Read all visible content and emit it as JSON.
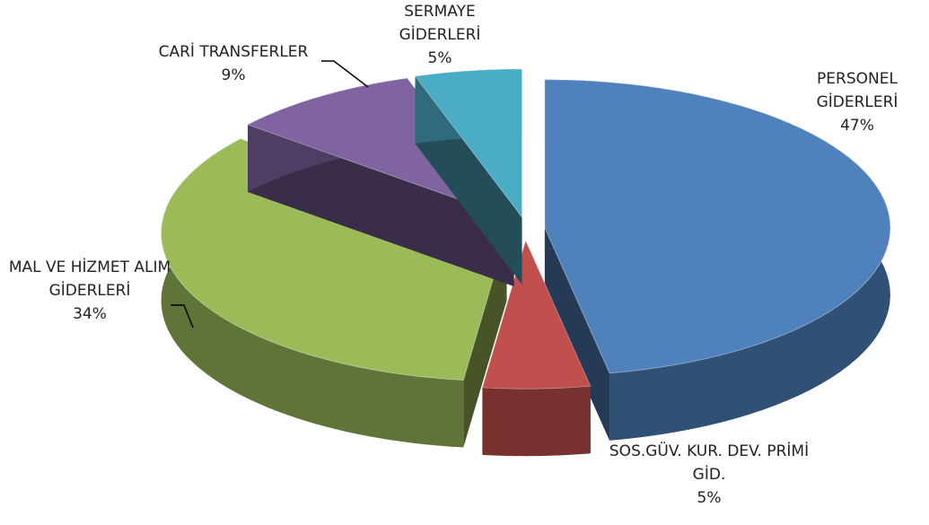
{
  "chart_data": {
    "type": "pie",
    "categories": [
      "PERSONEL GİDERLERİ",
      "SOS.GÜV. KUR. DEV. PRİMİ GİD.",
      "MAL VE HİZMET ALIM GİDERLERİ",
      "CARİ TRANSFERLER",
      "SERMAYE GİDERLERİ"
    ],
    "values": [
      47,
      5,
      34,
      9,
      5
    ],
    "value_labels": [
      "47%",
      "5%",
      "34%",
      "9%",
      "5%"
    ],
    "colors": [
      "#4f81bd",
      "#c0504d",
      "#9bbb59",
      "#8064a2",
      "#4bacc6"
    ]
  }
}
